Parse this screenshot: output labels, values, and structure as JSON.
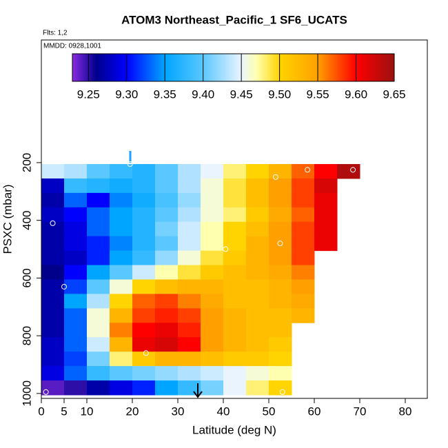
{
  "chart_data": {
    "type": "heatmap",
    "title": "ATOM3 Northeast_Pacific_1 SF6_UCATS",
    "flights_label": "Flts: 1,2",
    "dates_label": "MMDD: 0928,1001",
    "x_label": "Latitude (deg N)",
    "y_label": "PSXC (mbar)",
    "xlim": [
      0,
      84.85
    ],
    "ylim": [
      1017,
      -225
    ],
    "xticks": [
      0,
      5,
      10,
      20,
      30,
      40,
      50,
      60,
      70,
      80
    ],
    "yticks": [
      200,
      400,
      600,
      800,
      1000
    ],
    "clim": [
      9.229,
      9.65
    ],
    "cticks": [
      9.25,
      {
        "value": 9.3,
        "label": "9.30"
      },
      9.35,
      {
        "value": 9.4,
        "label": "9.40"
      },
      9.45,
      {
        "value": 9.5,
        "label": "9.50"
      },
      9.55,
      {
        "value": 9.6,
        "label": "9.60"
      },
      9.65
    ],
    "colorscale": [
      {
        "value": 9.229,
        "color": "#8a2be2"
      },
      {
        "value": 9.26,
        "color": "#00008b"
      },
      {
        "value": 9.3,
        "color": "#0000ff"
      },
      {
        "value": 9.35,
        "color": "#00a5ff"
      },
      {
        "value": 9.4,
        "color": "#5ac8ff"
      },
      {
        "value": 9.45,
        "color": "#eaf4ff"
      },
      {
        "value": 9.47,
        "color": "#ffffb0"
      },
      {
        "value": 9.5,
        "color": "#ffd400"
      },
      {
        "value": 9.55,
        "color": "#ffa000"
      },
      {
        "value": 9.6,
        "color": "#ff0000"
      },
      {
        "value": 9.65,
        "color": "#9b1010"
      }
    ],
    "lat_grid": [
      0,
      5,
      10,
      15,
      20,
      25,
      30,
      35,
      40,
      45,
      50,
      55,
      60,
      65
    ],
    "rows": [
      {
        "pressure": 230,
        "values": [
          9.44,
          9.43,
          9.4,
          9.38,
          9.37,
          9.4,
          9.43,
          9.45,
          9.48,
          9.5,
          9.53,
          9.57,
          9.6,
          9.64
        ]
      },
      {
        "pressure": 280,
        "values": [
          9.28,
          9.38,
          9.37,
          9.36,
          9.37,
          9.4,
          9.43,
          9.46,
          9.49,
          9.52,
          9.55,
          9.58,
          9.62,
          null
        ]
      },
      {
        "pressure": 330,
        "values": [
          9.27,
          9.33,
          9.3,
          9.34,
          9.36,
          9.39,
          9.42,
          9.46,
          9.49,
          9.52,
          9.55,
          9.58,
          9.61,
          null
        ]
      },
      {
        "pressure": 380,
        "values": [
          9.28,
          9.3,
          9.33,
          9.35,
          9.37,
          9.4,
          9.43,
          9.46,
          9.48,
          9.51,
          9.54,
          9.57,
          9.61,
          null
        ]
      },
      {
        "pressure": 430,
        "values": [
          9.27,
          9.29,
          9.33,
          9.35,
          9.37,
          9.41,
          9.44,
          9.47,
          9.5,
          9.52,
          9.55,
          9.58,
          9.61,
          null
        ]
      },
      {
        "pressure": 480,
        "values": [
          9.27,
          9.29,
          9.31,
          9.34,
          9.37,
          9.4,
          9.44,
          9.47,
          9.5,
          9.53,
          9.55,
          9.58,
          9.61,
          null
        ]
      },
      {
        "pressure": 530,
        "values": [
          9.27,
          9.28,
          9.31,
          9.35,
          9.38,
          9.42,
          9.46,
          9.49,
          9.51,
          9.53,
          9.55,
          9.58,
          null,
          null
        ]
      },
      {
        "pressure": 580,
        "values": [
          9.26,
          9.3,
          9.35,
          9.4,
          9.44,
          9.47,
          9.49,
          9.51,
          9.52,
          9.53,
          9.54,
          9.56,
          null,
          null
        ]
      },
      {
        "pressure": 630,
        "values": [
          9.27,
          9.32,
          9.4,
          9.46,
          9.5,
          9.52,
          9.53,
          9.53,
          9.52,
          9.52,
          9.53,
          9.55,
          null,
          null
        ]
      },
      {
        "pressure": 680,
        "values": [
          9.27,
          9.35,
          9.43,
          9.5,
          9.57,
          9.58,
          9.56,
          9.54,
          9.52,
          9.52,
          9.53,
          9.54,
          null,
          null
        ]
      },
      {
        "pressure": 730,
        "values": [
          9.27,
          9.33,
          9.46,
          9.53,
          9.58,
          9.59,
          9.58,
          9.55,
          9.53,
          9.52,
          9.52,
          9.53,
          null,
          null
        ]
      },
      {
        "pressure": 780,
        "values": [
          9.27,
          9.33,
          9.46,
          9.56,
          9.6,
          9.61,
          9.59,
          9.55,
          9.53,
          9.52,
          9.52,
          null,
          null,
          null
        ]
      },
      {
        "pressure": 830,
        "values": [
          9.28,
          9.33,
          9.44,
          9.53,
          9.61,
          9.62,
          9.6,
          9.55,
          9.53,
          9.52,
          9.51,
          null,
          null,
          null
        ]
      },
      {
        "pressure": 880,
        "values": [
          9.28,
          9.32,
          9.41,
          9.48,
          9.51,
          9.53,
          9.53,
          9.52,
          9.51,
          9.51,
          9.5,
          null,
          null,
          null
        ]
      },
      {
        "pressure": 930,
        "values": [
          9.29,
          9.33,
          9.38,
          9.4,
          9.41,
          9.42,
          9.43,
          9.44,
          9.45,
          9.46,
          9.47,
          null,
          null,
          null
        ]
      },
      {
        "pressure": 980,
        "values": [
          9.24,
          9.25,
          9.27,
          9.29,
          9.31,
          9.35,
          9.38,
          9.41,
          9.45,
          9.48,
          9.5,
          null,
          null,
          null
        ]
      }
    ],
    "points": {
      "x": [
        1,
        2.5,
        5,
        19.5,
        23,
        40.5,
        51.5,
        52.5,
        58.5,
        68.5,
        53
      ],
      "y": [
        995,
        410,
        630,
        205,
        860,
        500,
        250,
        480,
        225,
        225,
        995
      ]
    }
  }
}
